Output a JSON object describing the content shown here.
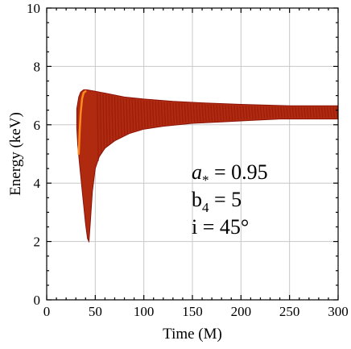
{
  "chart_data": {
    "type": "density",
    "xlabel": "Time (M)",
    "ylabel": "Energy (keV)",
    "xlim": [
      0,
      300
    ],
    "ylim": [
      0,
      10
    ],
    "xticks": [
      0,
      50,
      100,
      150,
      200,
      250,
      300
    ],
    "yticks": [
      0,
      2,
      4,
      6,
      8,
      10
    ],
    "grid": true,
    "colors": {
      "dark": "#8b1208",
      "mid": "#b02a10",
      "hot": "#ff8a1e"
    },
    "envelope": {
      "upper": [
        [
          31,
          6.55
        ],
        [
          33,
          6.95
        ],
        [
          35,
          7.12
        ],
        [
          38,
          7.2
        ],
        [
          41,
          7.2
        ],
        [
          50,
          7.15
        ],
        [
          65,
          7.05
        ],
        [
          80,
          6.95
        ],
        [
          100,
          6.88
        ],
        [
          130,
          6.8
        ],
        [
          160,
          6.75
        ],
        [
          200,
          6.7
        ],
        [
          250,
          6.65
        ],
        [
          300,
          6.65
        ]
      ],
      "lower": [
        [
          300,
          6.2
        ],
        [
          270,
          6.2
        ],
        [
          240,
          6.2
        ],
        [
          210,
          6.15
        ],
        [
          180,
          6.1
        ],
        [
          150,
          6.05
        ],
        [
          120,
          5.95
        ],
        [
          100,
          5.85
        ],
        [
          85,
          5.7
        ],
        [
          70,
          5.45
        ],
        [
          60,
          5.2
        ],
        [
          54,
          4.9
        ],
        [
          50,
          4.5
        ],
        [
          47,
          3.7
        ],
        [
          45,
          2.7
        ],
        [
          43.5,
          2.0
        ],
        [
          42,
          2.1
        ],
        [
          40,
          2.6
        ],
        [
          37,
          3.6
        ],
        [
          34,
          4.6
        ],
        [
          32,
          5.3
        ],
        [
          31,
          5.9
        ]
      ]
    },
    "hot_line": [
      [
        33,
        5.0
      ],
      [
        34,
        5.8
      ],
      [
        35,
        6.4
      ],
      [
        36.5,
        6.9
      ],
      [
        38,
        7.1
      ],
      [
        40,
        7.15
      ]
    ],
    "annotations": {
      "a_symbol": "a",
      "a_sub": "*",
      "a_value": " = 0.95",
      "b_symbol": "b",
      "b_sub": "4",
      "b_value": " = 5",
      "i_line": "i = 45°"
    }
  }
}
